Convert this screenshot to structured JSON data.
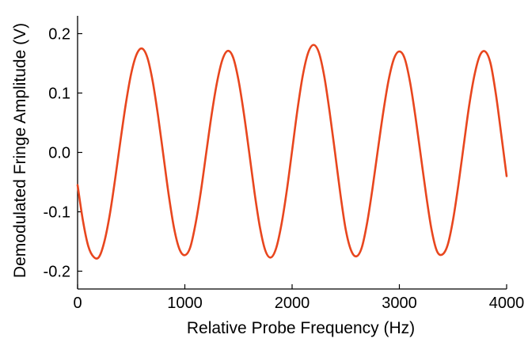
{
  "chart_data": {
    "type": "line",
    "title": "",
    "xlabel": "Relative Probe Frequency (Hz)",
    "ylabel": "Demodulated Fringe Amplitude (V)",
    "xlim": [
      0,
      4000
    ],
    "ylim": [
      -0.23,
      0.23
    ],
    "x_ticks": [
      0,
      1000,
      2000,
      3000,
      4000
    ],
    "x_tick_labels": [
      "0",
      "1000",
      "2000",
      "3000",
      "4000"
    ],
    "y_ticks": [
      -0.2,
      -0.1,
      0.0,
      0.1,
      0.2
    ],
    "y_tick_labels": [
      "-0.2",
      "-0.1",
      "0.0",
      "0.1",
      "0.2"
    ],
    "grid": false,
    "legend": "none",
    "series": [
      {
        "color": "#e8461e",
        "x": [
          0,
          50,
          100,
          150,
          200,
          250,
          300,
          350,
          400,
          450,
          500,
          550,
          600,
          650,
          700,
          750,
          800,
          850,
          900,
          950,
          1000,
          1050,
          1100,
          1150,
          1200,
          1250,
          1300,
          1350,
          1400,
          1450,
          1500,
          1550,
          1600,
          1650,
          1700,
          1750,
          1800,
          1850,
          1900,
          1950,
          2000,
          2050,
          2100,
          2150,
          2200,
          2250,
          2300,
          2350,
          2400,
          2450,
          2500,
          2550,
          2600,
          2650,
          2700,
          2750,
          2800,
          2850,
          2900,
          2950,
          3000,
          3050,
          3100,
          3150,
          3200,
          3250,
          3300,
          3350,
          3400,
          3450,
          3500,
          3550,
          3600,
          3650,
          3700,
          3750,
          3800,
          3850,
          3900,
          3950,
          4000
        ],
        "values": [
          -0.055,
          -0.115,
          -0.158,
          -0.176,
          -0.176,
          -0.15,
          -0.105,
          -0.045,
          0.02,
          0.082,
          0.133,
          0.165,
          0.175,
          0.16,
          0.12,
          0.062,
          -0.005,
          -0.072,
          -0.128,
          -0.163,
          -0.173,
          -0.16,
          -0.12,
          -0.065,
          0.0,
          0.064,
          0.118,
          0.156,
          0.171,
          0.16,
          0.122,
          0.066,
          0.0,
          -0.068,
          -0.126,
          -0.165,
          -0.177,
          -0.162,
          -0.122,
          -0.065,
          0.003,
          0.072,
          0.13,
          0.168,
          0.181,
          0.168,
          0.128,
          0.068,
          0.0,
          -0.07,
          -0.13,
          -0.165,
          -0.175,
          -0.16,
          -0.118,
          -0.06,
          0.005,
          0.068,
          0.122,
          0.158,
          0.17,
          0.158,
          0.118,
          0.06,
          -0.006,
          -0.072,
          -0.13,
          -0.166,
          -0.172,
          -0.156,
          -0.114,
          -0.055,
          0.012,
          0.078,
          0.13,
          0.163,
          0.17,
          0.15,
          0.098,
          0.03,
          -0.04
        ]
      }
    ]
  }
}
